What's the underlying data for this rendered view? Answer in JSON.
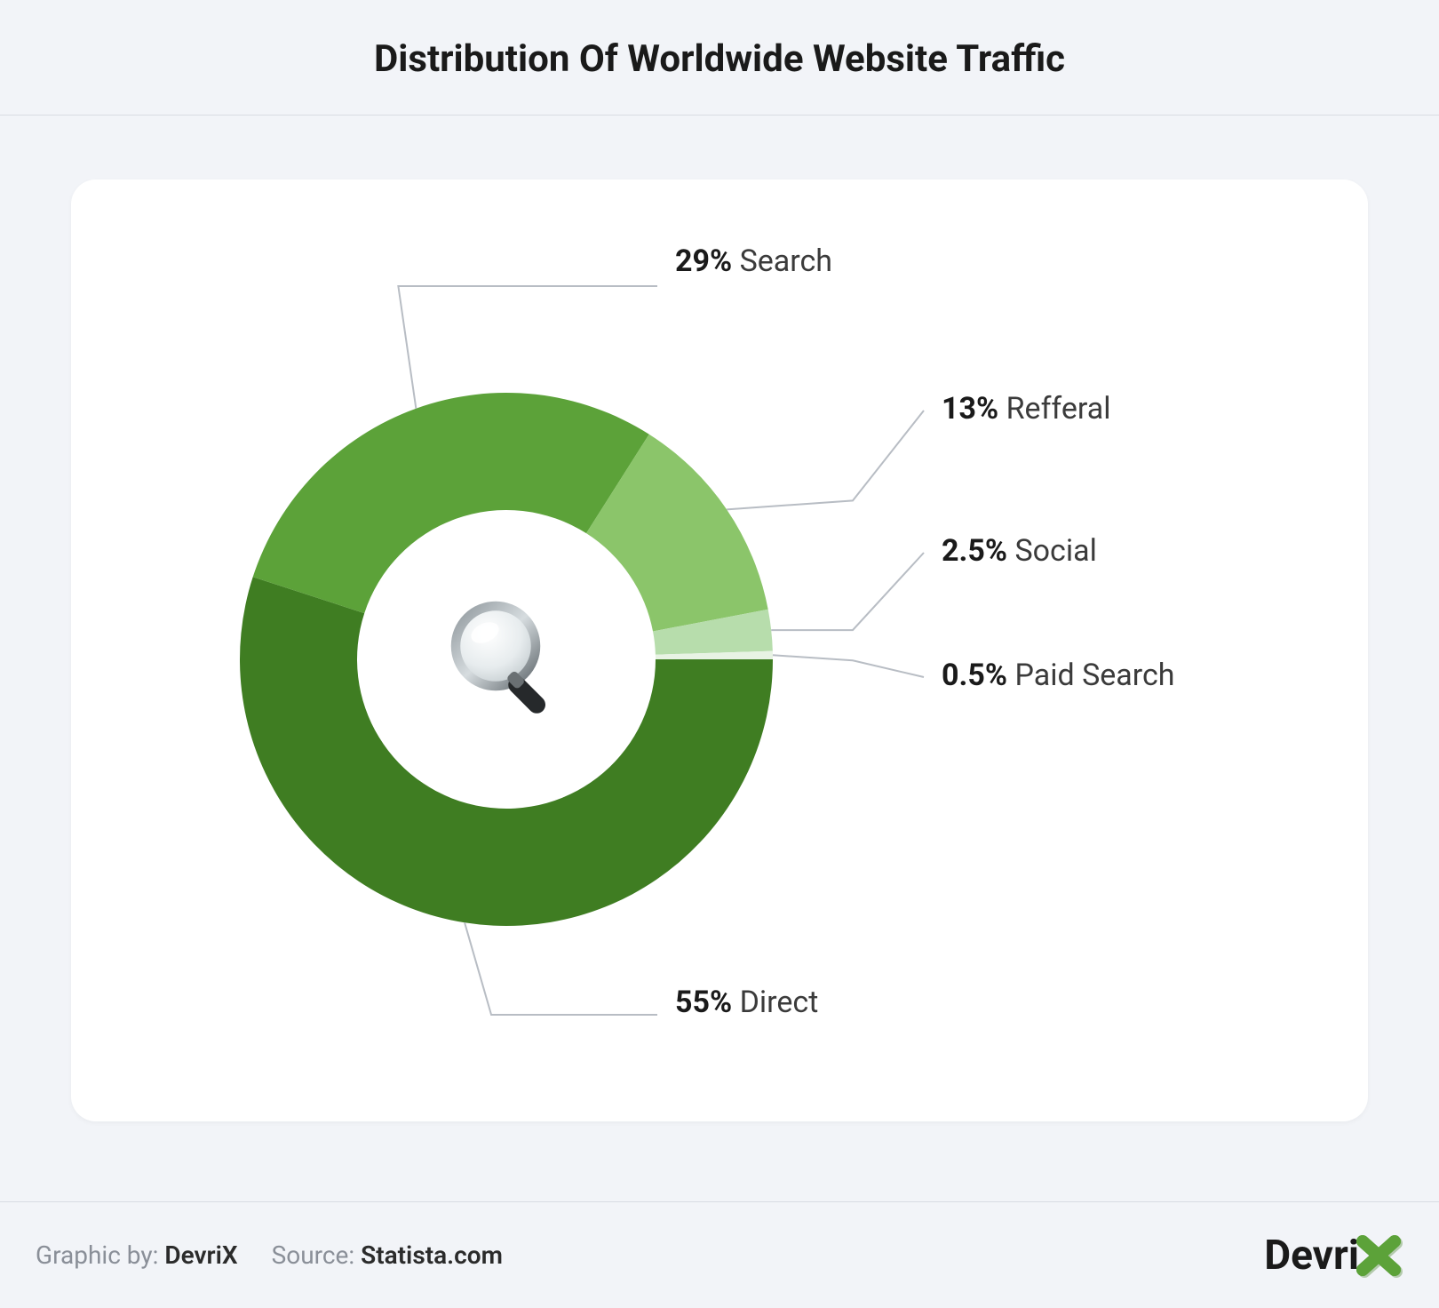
{
  "title": "Distribution Of Worldwide Website Traffic",
  "chart": {
    "type": "donut",
    "inner_radius_pct": 56,
    "background_color": "#ffffff",
    "card_radius": 28,
    "leader_color": "#b8bdc4",
    "leader_width": 2,
    "segments": [
      {
        "label": "Direct",
        "value": 55,
        "pct_label": "55%",
        "color": "#3f7d22"
      },
      {
        "label": "Search",
        "value": 29,
        "pct_label": "29%",
        "color": "#5ca239"
      },
      {
        "label": "Refferal",
        "value": 13,
        "pct_label": "13%",
        "color": "#8bc56a"
      },
      {
        "label": "Social",
        "value": 2.5,
        "pct_label": "2.5%",
        "color": "#b7ddac"
      },
      {
        "label": "Paid Search",
        "value": 0.5,
        "pct_label": "0.5%",
        "color": "#e8f3e4"
      }
    ],
    "label_fontsize": 34,
    "center_icon": "magnifying-glass-icon"
  },
  "footer": {
    "graphic_by_label": "Graphic by:",
    "graphic_by_value": "DevriX",
    "source_label": "Source:",
    "source_value": "Statista.com"
  },
  "brand": {
    "name": "Devri",
    "accent_color": "#5ca239"
  },
  "colors": {
    "page_bg": "#f2f4f8",
    "divider": "#d8dce2",
    "title_color": "#1a1a1a",
    "label_text": "#3b3b3b",
    "footer_muted": "#8a8f98"
  }
}
